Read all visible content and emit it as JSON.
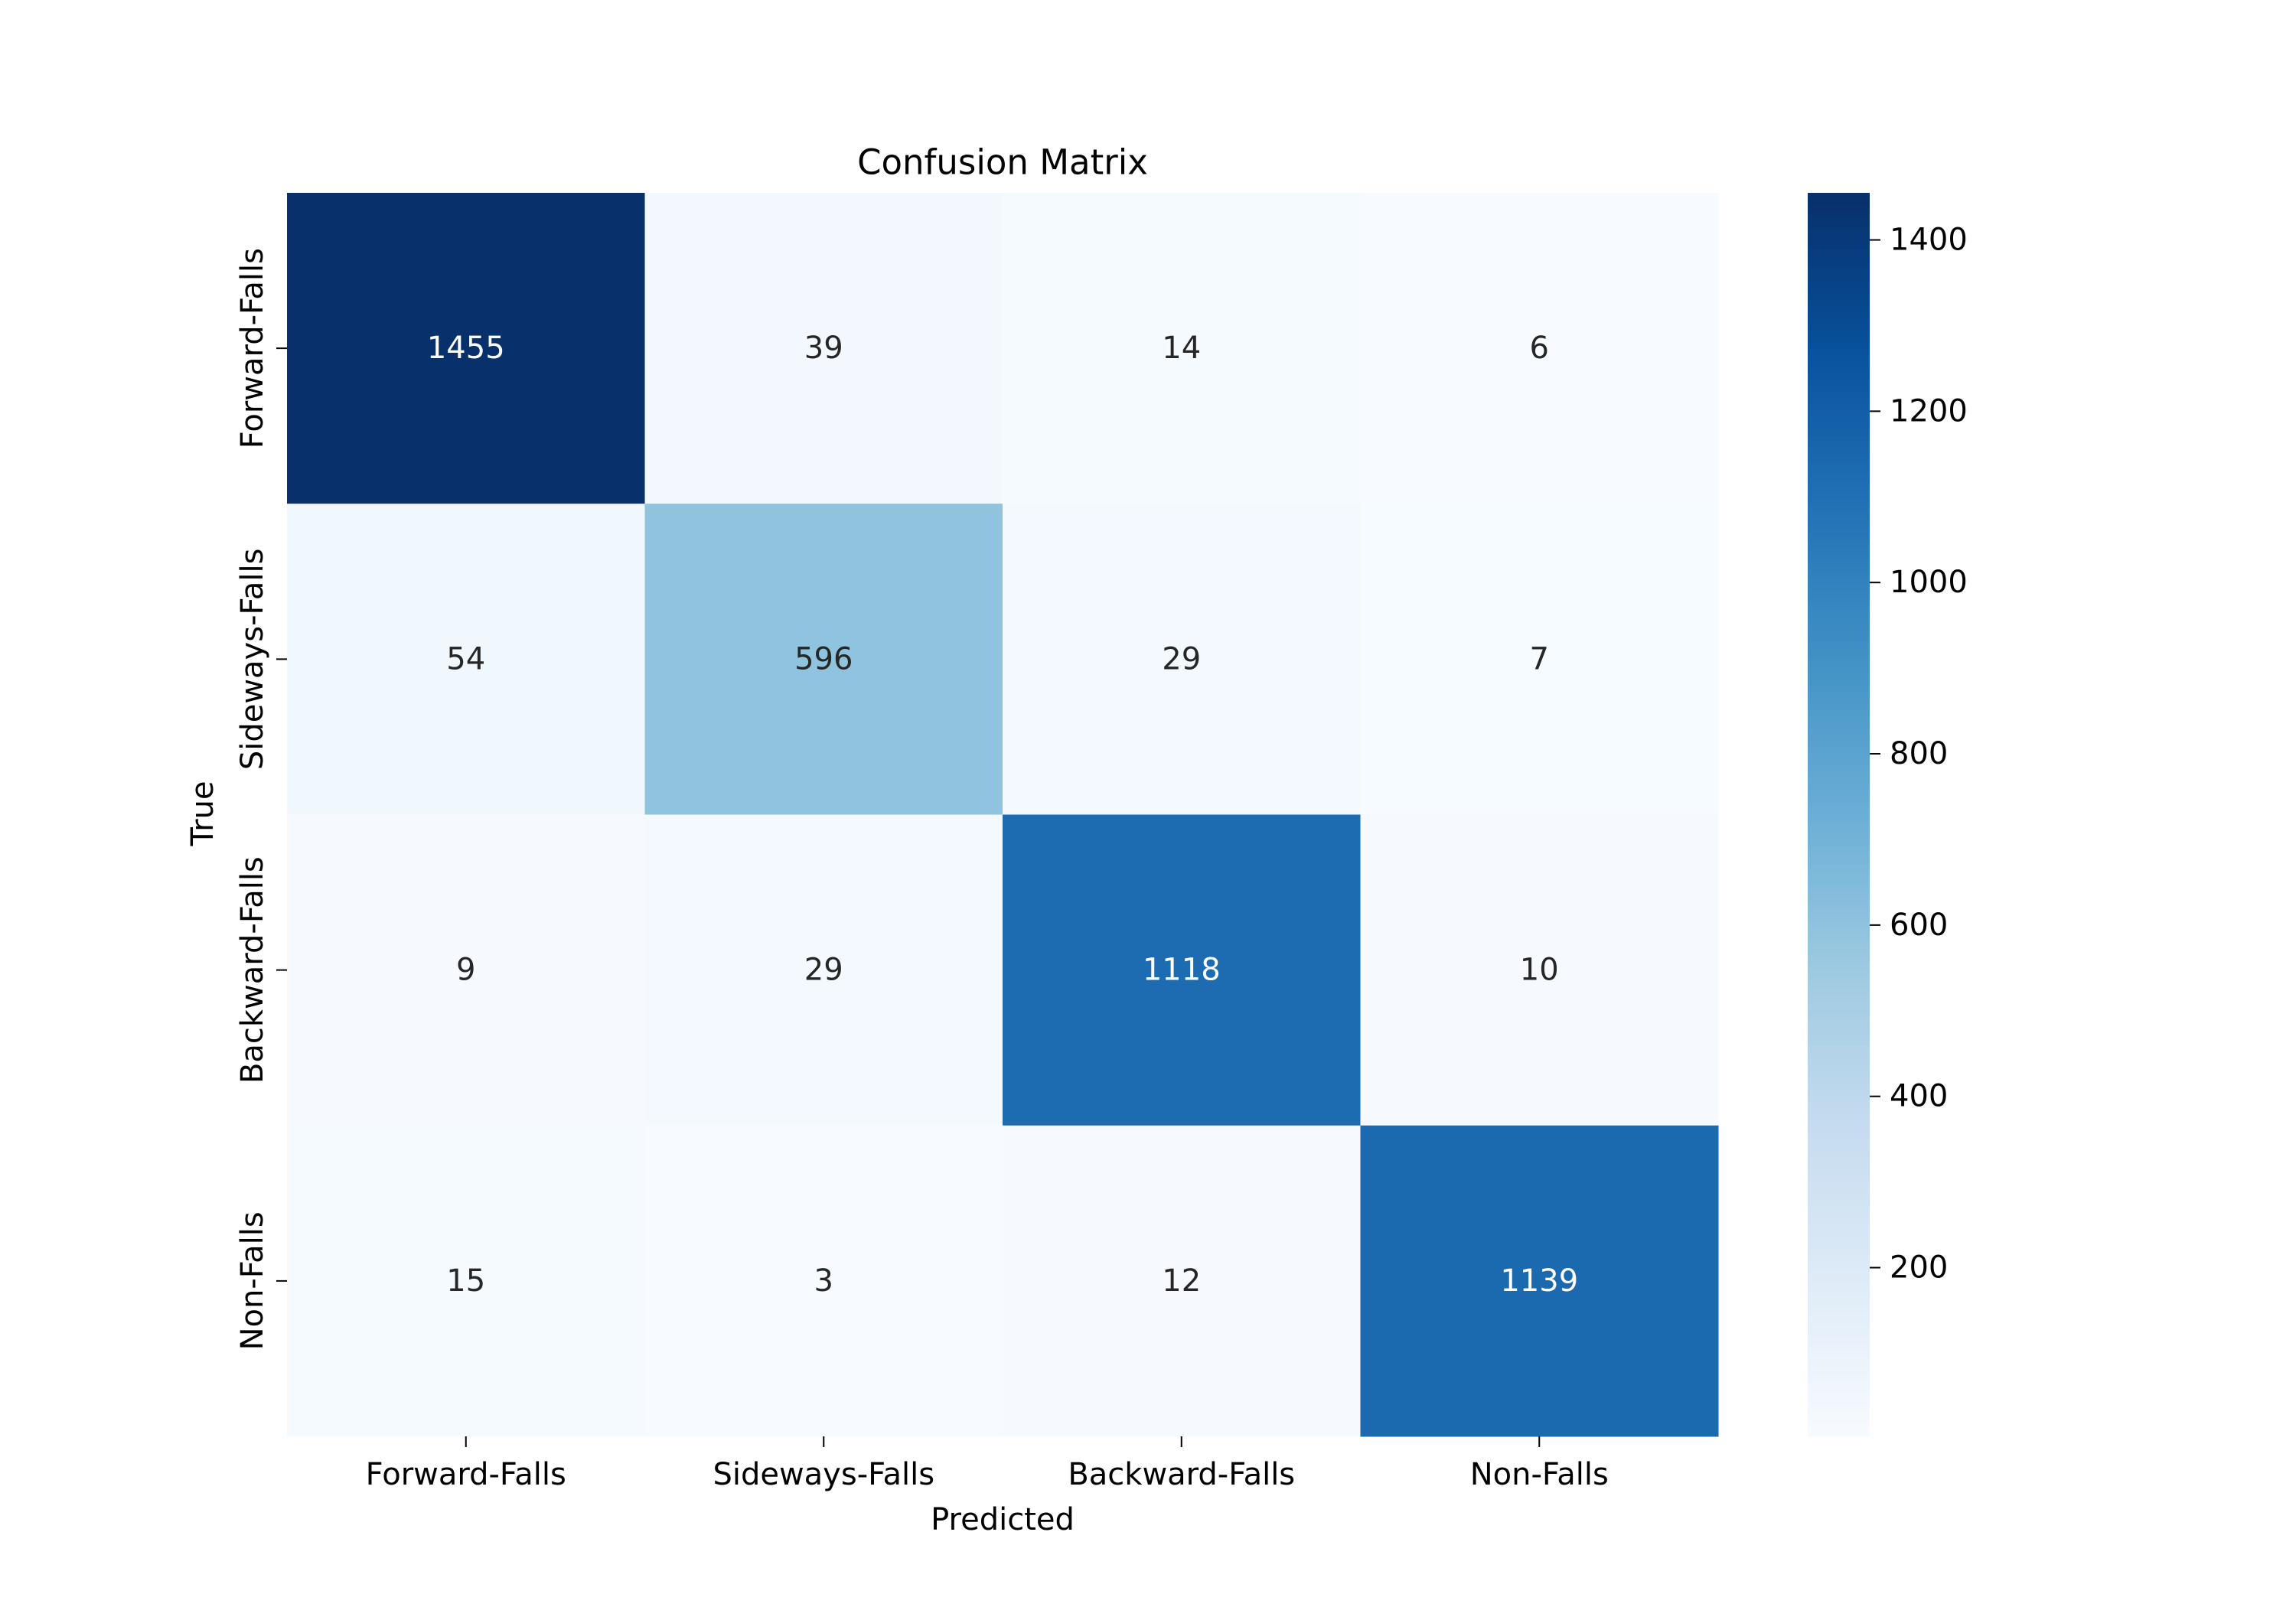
{
  "chart_data": {
    "type": "heatmap",
    "title": "Confusion Matrix",
    "xlabel": "Predicted",
    "ylabel": "True",
    "x_categories": [
      "Forward-Falls",
      "Sideways-Falls",
      "Backward-Falls",
      "Non-Falls"
    ],
    "y_categories": [
      "Forward-Falls",
      "Sideways-Falls",
      "Backward-Falls",
      "Non-Falls"
    ],
    "values": [
      [
        1455,
        39,
        14,
        6
      ],
      [
        54,
        596,
        29,
        7
      ],
      [
        9,
        29,
        1118,
        10
      ],
      [
        15,
        3,
        12,
        1139
      ]
    ],
    "colormap": "Blues",
    "colorbar": {
      "min": 3,
      "max": 1455,
      "ticks": [
        200,
        400,
        600,
        800,
        1000,
        1200,
        1400
      ]
    },
    "colors": {
      "low": "#f7fbff",
      "high": "#08306b",
      "text_dark": "#262626",
      "text_light": "#ffffff"
    }
  }
}
